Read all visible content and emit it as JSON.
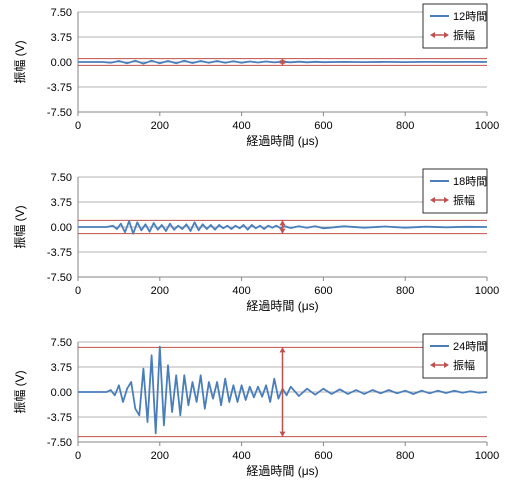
{
  "colors": {
    "signal": "#4a7ebb",
    "amplitude": "#c0504d",
    "grid": "#b3b3b3",
    "axis": "#868686"
  },
  "chart_data": [
    {
      "type": "line",
      "xlabel": "経過時間 (μs)",
      "ylabel": "振幅 (V)",
      "xlim": [
        0,
        1000
      ],
      "ylim": [
        -7.5,
        7.5
      ],
      "xticks": [
        "0",
        "200",
        "400",
        "600",
        "800",
        "1000"
      ],
      "yticks": [
        "7.50",
        "3.75",
        "0.00",
        "-3.75",
        "-7.50"
      ],
      "grid": "horizontal",
      "legend_position": "top-right",
      "series": [
        {
          "name": "12時間",
          "kind": "line",
          "x": [
            0,
            60,
            80,
            100,
            120,
            140,
            160,
            180,
            200,
            220,
            240,
            260,
            280,
            300,
            320,
            340,
            360,
            380,
            400,
            420,
            440,
            460,
            480,
            500,
            520,
            540,
            560,
            580,
            600,
            650,
            700,
            750,
            800,
            850,
            900,
            950,
            1000
          ],
          "y": [
            0,
            0,
            -0.1,
            0.15,
            -0.2,
            0.2,
            -0.25,
            0.2,
            -0.2,
            0.15,
            -0.2,
            0.2,
            -0.15,
            0.15,
            -0.1,
            0.15,
            -0.1,
            0.1,
            -0.1,
            0.08,
            -0.08,
            0.08,
            -0.06,
            0.05,
            -0.05,
            0.04,
            -0.04,
            0.03,
            -0.03,
            0.02,
            -0.02,
            0.02,
            -0.01,
            0.01,
            0,
            0.01,
            0
          ]
        },
        {
          "name": "振幅",
          "kind": "amplitude",
          "x": 500,
          "low": -0.5,
          "high": 0.5
        }
      ]
    },
    {
      "type": "line",
      "xlabel": "経過時間 (μs)",
      "ylabel": "振幅 (V)",
      "xlim": [
        0,
        1000
      ],
      "ylim": [
        -7.5,
        7.5
      ],
      "xticks": [
        "0",
        "200",
        "400",
        "600",
        "800",
        "1000"
      ],
      "yticks": [
        "7.50",
        "3.75",
        "0.00",
        "-3.75",
        "-7.50"
      ],
      "grid": "horizontal",
      "legend_position": "top-right",
      "series": [
        {
          "name": "18時間",
          "kind": "line",
          "x": [
            0,
            70,
            85,
            95,
            105,
            115,
            125,
            135,
            145,
            155,
            165,
            175,
            185,
            195,
            205,
            215,
            225,
            235,
            245,
            255,
            265,
            275,
            285,
            295,
            305,
            315,
            325,
            335,
            345,
            355,
            365,
            375,
            385,
            395,
            405,
            415,
            425,
            435,
            445,
            455,
            465,
            475,
            485,
            495,
            505,
            520,
            540,
            560,
            580,
            600,
            650,
            700,
            750,
            800,
            850,
            900,
            950,
            1000
          ],
          "y": [
            0,
            0,
            0.2,
            -0.3,
            0.5,
            -0.8,
            0.9,
            -1,
            0.7,
            -0.5,
            0.4,
            -0.7,
            0.6,
            -0.4,
            0.3,
            -0.6,
            0.5,
            -0.4,
            0.2,
            -0.3,
            0.4,
            -0.6,
            0.7,
            -0.5,
            0.4,
            -0.3,
            0.3,
            -0.4,
            0.3,
            -0.2,
            0.2,
            -0.3,
            0.2,
            -0.2,
            0.3,
            -0.4,
            0.3,
            -0.2,
            0.2,
            -0.3,
            0.2,
            -0.1,
            0.2,
            -0.2,
            0.1,
            -0.15,
            0.1,
            -0.1,
            0.1,
            -0.2,
            0.1,
            -0.1,
            0.08,
            -0.1,
            0.05,
            -0.05,
            0.03,
            0
          ]
        },
        {
          "name": "振幅",
          "kind": "amplitude",
          "x": 500,
          "low": -1.0,
          "high": 1.0
        }
      ]
    },
    {
      "type": "line",
      "xlabel": "経過時間 (μs)",
      "ylabel": "振幅 (V)",
      "xlim": [
        0,
        1000
      ],
      "ylim": [
        -7.5,
        7.5
      ],
      "xticks": [
        "0",
        "200",
        "400",
        "600",
        "800",
        "1000"
      ],
      "yticks": [
        "7.50",
        "3.75",
        "0.00",
        "-3.75",
        "-7.50"
      ],
      "grid": "horizontal",
      "legend_position": "top-right",
      "series": [
        {
          "name": "24時間",
          "kind": "line",
          "x": [
            0,
            70,
            80,
            90,
            100,
            110,
            120,
            130,
            140,
            150,
            160,
            170,
            180,
            190,
            200,
            210,
            220,
            230,
            240,
            250,
            260,
            270,
            280,
            290,
            300,
            310,
            320,
            330,
            340,
            350,
            360,
            370,
            380,
            390,
            400,
            410,
            420,
            430,
            440,
            450,
            460,
            470,
            480,
            490,
            500,
            510,
            520,
            540,
            560,
            580,
            600,
            620,
            640,
            660,
            680,
            700,
            720,
            740,
            760,
            780,
            800,
            820,
            840,
            860,
            880,
            900,
            920,
            940,
            960,
            980,
            1000
          ],
          "y": [
            0,
            0,
            0.3,
            -0.5,
            1,
            -1.5,
            0.5,
            1.5,
            -2.5,
            -3.5,
            3.5,
            -4.5,
            5.5,
            -6.2,
            6.8,
            -5,
            4,
            -3,
            2.5,
            -3.5,
            2.5,
            -2,
            1.5,
            -1.5,
            2.5,
            -2.5,
            1.5,
            -1,
            1.5,
            -2,
            2,
            -1.5,
            1,
            -1.5,
            1,
            -1.2,
            0.8,
            -0.8,
            0.8,
            -0.7,
            1,
            -1.5,
            2,
            -1,
            0.5,
            -0.5,
            0.8,
            -0.6,
            0.5,
            -0.4,
            0.5,
            -0.3,
            0.4,
            -0.3,
            0.3,
            -0.3,
            0.3,
            -0.2,
            0.3,
            -0.2,
            0.2,
            -0.3,
            0.2,
            -0.2,
            0.2,
            -0.15,
            0.2,
            -0.1,
            0.1,
            -0.1,
            0
          ]
        },
        {
          "name": "振幅",
          "kind": "amplitude",
          "x": 500,
          "low": -6.7,
          "high": 6.7
        }
      ]
    }
  ]
}
